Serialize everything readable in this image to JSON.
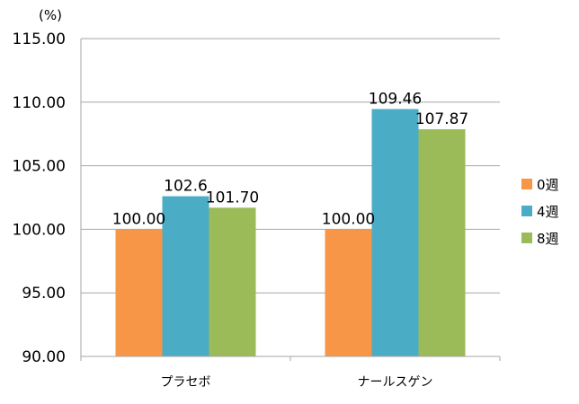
{
  "chart_data": {
    "type": "bar",
    "ylabel": "(%)",
    "ylim": [
      90,
      115
    ],
    "yticks": [
      "90.00",
      "95.00",
      "100.00",
      "105.00",
      "110.00",
      "115.00"
    ],
    "grid": true,
    "legend_position": "right",
    "categories": [
      "プラセボ",
      "ナールスゲン"
    ],
    "series": [
      {
        "name": "0週",
        "color": "#F79646",
        "values": [
          100.0,
          100.0
        ],
        "labels": [
          "100.00",
          "100.00"
        ]
      },
      {
        "name": "4週",
        "color": "#4BACC6",
        "values": [
          102.6,
          109.46
        ],
        "labels": [
          "102.6",
          "109.46"
        ]
      },
      {
        "name": "8週",
        "color": "#9BBB59",
        "values": [
          101.7,
          107.87
        ],
        "labels": [
          "101.70",
          "107.87"
        ]
      }
    ]
  }
}
